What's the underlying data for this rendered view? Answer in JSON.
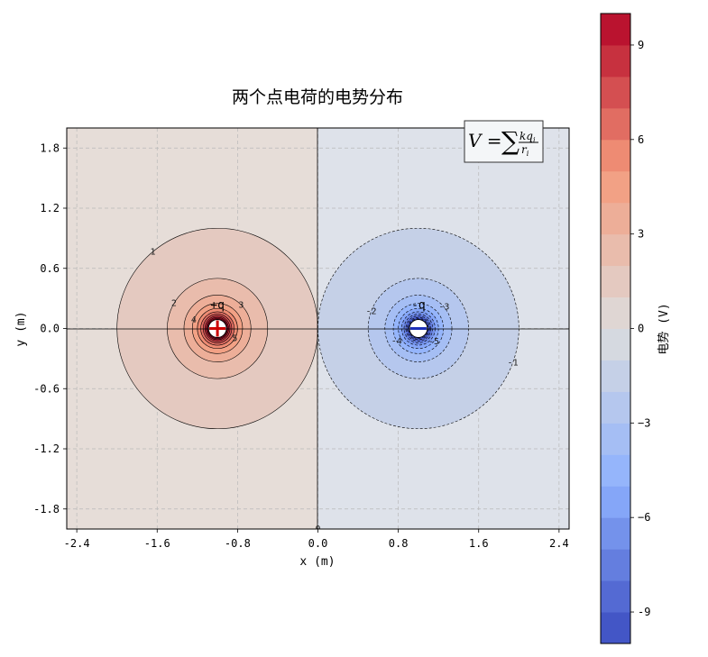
{
  "chart_data": {
    "type": "heatmap",
    "title": "两个点电荷的电势分布",
    "xlabel": "x (m)",
    "ylabel": "y (m)",
    "xlim": [
      -2.5,
      2.5
    ],
    "ylim": [
      -2.0,
      2.0
    ],
    "x_ticks": [
      -2.4,
      -1.6,
      -0.8,
      0.0,
      0.8,
      1.6,
      2.4
    ],
    "y_ticks": [
      -1.8,
      -1.2,
      -0.6,
      0.0,
      0.6,
      1.2,
      1.8
    ],
    "x_tick_labels": [
      "-2.4",
      "-1.6",
      "-0.8",
      "0.0",
      "0.8",
      "1.6",
      "2.4"
    ],
    "y_tick_labels": [
      "-1.8",
      "-1.2",
      "-0.6",
      "0.0",
      "0.6",
      "1.2",
      "1.8"
    ],
    "grid": true,
    "charges": [
      {
        "label": "+q",
        "x": -1.0,
        "y": 0.0,
        "sign": 1
      },
      {
        "label": "-q",
        "x": 1.0,
        "y": 0.0,
        "sign": -1
      }
    ],
    "contour_levels": [
      -5,
      -4,
      -3,
      -2,
      -1,
      1,
      2,
      3,
      4,
      5
    ],
    "contour_label_values": [
      "1",
      "2",
      "3",
      "4",
      "5",
      "-1",
      "-2",
      "-3",
      "-4",
      "-5",
      "0"
    ],
    "formula_box": {
      "lhs": "V",
      "rhs": "kqi/ri"
    },
    "colorbar": {
      "label": "电势 (V)",
      "range": [
        -10,
        10
      ],
      "levels": 20,
      "ticks": [
        -9,
        -6,
        -3,
        0,
        3,
        6,
        9
      ],
      "tick_labels": [
        "-9",
        "−6",
        "−3",
        "0",
        "3",
        "6",
        "9"
      ],
      "colormap": "coolwarm"
    }
  }
}
